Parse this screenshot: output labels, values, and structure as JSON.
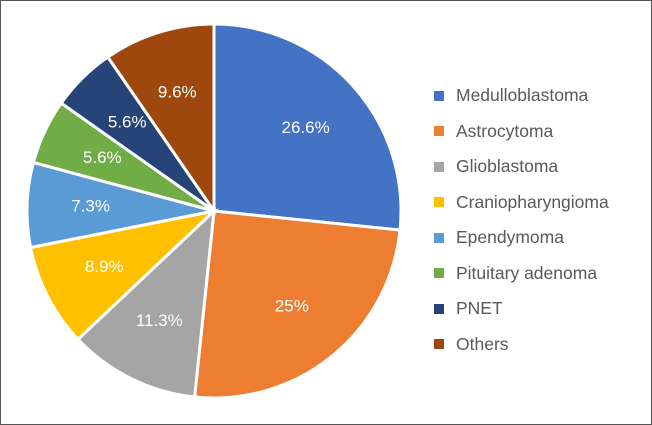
{
  "chart_data": {
    "type": "pie",
    "title": "",
    "legend_position": "right",
    "slices": [
      {
        "label": "Medulloblastoma",
        "value": 26.6,
        "display": "26.6%",
        "color": "#4472c4"
      },
      {
        "label": "Astrocytoma",
        "value": 25,
        "display": "25%",
        "color": "#ed7d31"
      },
      {
        "label": "Glioblastoma",
        "value": 11.3,
        "display": "11.3%",
        "color": "#a5a5a5"
      },
      {
        "label": "Craniopharyngioma",
        "value": 8.9,
        "display": "8.9%",
        "color": "#ffc000"
      },
      {
        "label": "Ependymoma",
        "value": 7.3,
        "display": "7.3%",
        "color": "#5b9bd5"
      },
      {
        "label": "Pituitary adenoma",
        "value": 5.6,
        "display": "5.6%",
        "color": "#70ad47"
      },
      {
        "label": "PNET",
        "value": 5.6,
        "display": "5.6%",
        "color": "#264478"
      },
      {
        "label": "Others",
        "value": 9.6,
        "display": "9.6%",
        "color": "#9e480e"
      }
    ]
  }
}
